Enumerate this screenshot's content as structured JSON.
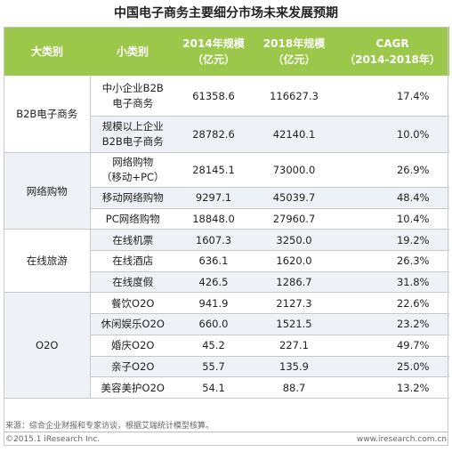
{
  "title": "中国电子商务主要细分市场未来发展预期",
  "headers": {
    "h1": "大类别",
    "h2": "小类别",
    "h3_line1": "2014年规模",
    "h3_line2": "（亿元）",
    "h4_line1": "2018年规模",
    "h4_line2": "（亿元）",
    "h5_line1": "CAGR",
    "h5_line2": "（2014-2018年）"
  },
  "groups": [
    {
      "category": "B2B电子商务",
      "rows": [
        {
          "sub": "中小企业B2B电子商务",
          "y2014": "61358.6",
          "y2018": "116627.3",
          "cagr": "17.4%"
        },
        {
          "sub": "规模以上企业B2B电子商务",
          "y2014": "28782.6",
          "y2018": "42140.1",
          "cagr": "10.0%"
        }
      ]
    },
    {
      "category": "网络购物",
      "rows": [
        {
          "sub": "网络购物（移动+PC）",
          "y2014": "28145.1",
          "y2018": "73000.0",
          "cagr": "26.9%"
        },
        {
          "sub": "移动网络购物",
          "y2014": "9297.1",
          "y2018": "45039.7",
          "cagr": "48.4%"
        },
        {
          "sub": "PC网络购物",
          "y2014": "18848.0",
          "y2018": "27960.7",
          "cagr": "10.4%"
        }
      ]
    },
    {
      "category": "在线旅游",
      "rows": [
        {
          "sub": "在线机票",
          "y2014": "1607.3",
          "y2018": "3250.0",
          "cagr": "19.2%"
        },
        {
          "sub": "在线酒店",
          "y2014": "636.1",
          "y2018": "1620.0",
          "cagr": "26.3%"
        },
        {
          "sub": "在线度假",
          "y2014": "426.5",
          "y2018": "1286.7",
          "cagr": "31.8%"
        }
      ]
    },
    {
      "category": "O2O",
      "rows": [
        {
          "sub": "餐饮O2O",
          "y2014": "941.9",
          "y2018": "2127.3",
          "cagr": "22.6%"
        },
        {
          "sub": "休闲娱乐O2O",
          "y2014": "660.0",
          "y2018": "1521.5",
          "cagr": "23.2%"
        },
        {
          "sub": "婚庆O2O",
          "y2014": "45.2",
          "y2018": "227.1",
          "cagr": "49.7%"
        },
        {
          "sub": "亲子O2O",
          "y2014": "55.7",
          "y2018": "135.9",
          "cagr": "25.0%"
        },
        {
          "sub": "美容美护O2O",
          "y2014": "54.1",
          "y2018": "88.7",
          "cagr": "13.2%"
        }
      ]
    }
  ],
  "sub_lines": {
    "r0_l1": "中小企业B2B",
    "r0_l2": "电子商务",
    "r1_l1": "规模以上企业",
    "r1_l2": "B2B电子商务",
    "r2_l1": "网络购物",
    "r2_l2": "（移动+PC）"
  },
  "source": "来源：综合企业财报和专家访谈，根据艾瑞统计模型核算。",
  "footer": {
    "left": "©2015.1 iResearch Inc.",
    "right": "www.iresearch.com.cn"
  },
  "colors": {
    "header_bg": "#9bc84a",
    "stripe": "#eef1f5"
  }
}
